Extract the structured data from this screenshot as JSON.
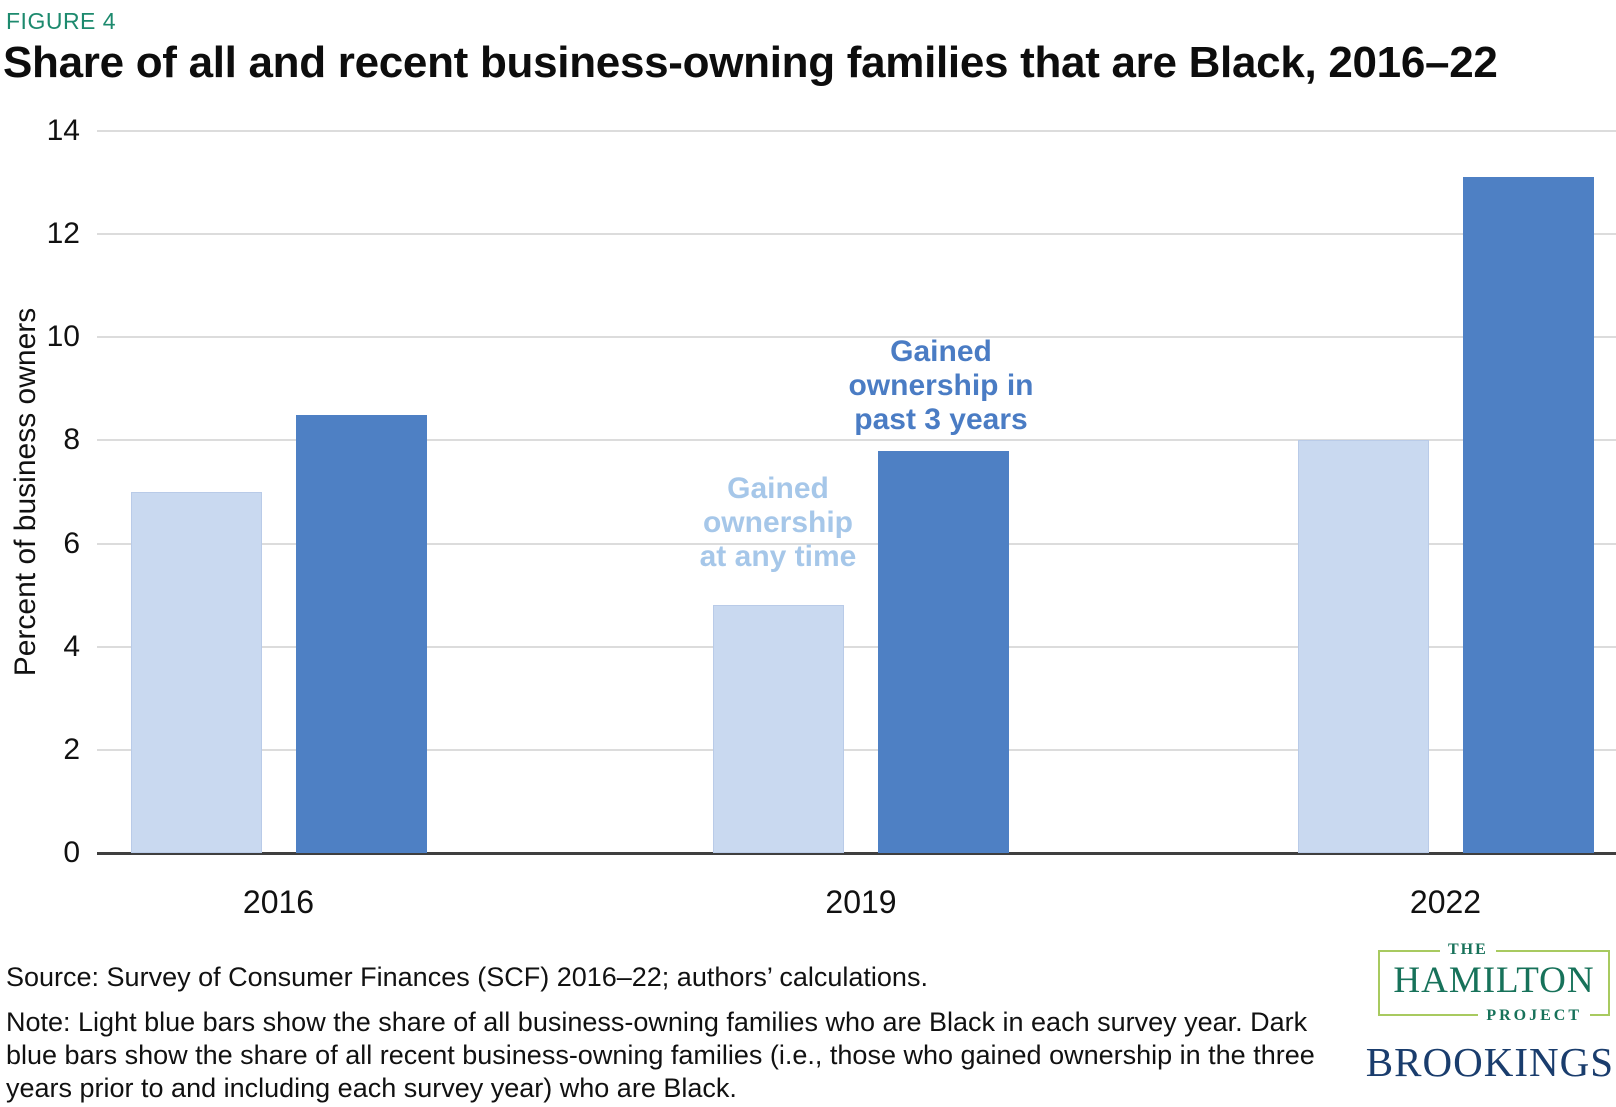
{
  "figure_label": "FIGURE 4",
  "title": "Share of all and recent business-owning families that are Black, 2016–22",
  "chart_data": {
    "type": "bar",
    "categories": [
      "2016",
      "2019",
      "2022"
    ],
    "series": [
      {
        "name": "Gained ownership at any time",
        "color": "#c9d9f0",
        "values": [
          7.0,
          4.8,
          8.0
        ]
      },
      {
        "name": "Gained ownership in past 3 years",
        "color": "#4e80c4",
        "values": [
          8.5,
          7.8,
          13.1
        ]
      }
    ],
    "title": "Share of all and recent business-owning families that are Black, 2016–22",
    "xlabel": "",
    "ylabel": "Percent of business owners",
    "ylim": [
      0,
      14
    ],
    "yticks": [
      0,
      2,
      4,
      6,
      8,
      10,
      12,
      14
    ],
    "grid": true,
    "legend_position": "in-plot annotations",
    "annotations": [
      {
        "text": "Gained\nownership\nat any time",
        "series": "Gained ownership at any time",
        "color": "#a6c7e9"
      },
      {
        "text": "Gained\nownership in\npast 3 years",
        "series": "Gained ownership in past 3 years",
        "color": "#4a7cc4"
      }
    ]
  },
  "footer": {
    "source": "Source: Survey of Consumer Finances (SCF) 2016–22; authors’ calculations.",
    "note": "Note: Light blue bars show the share of all business-owning families who are Black in each survey year. Dark blue bars show the share of all recent business-owning families (i.e., those who gained ownership in the three years prior to and including each survey year) who are Black."
  },
  "logos": {
    "hamilton": {
      "the": "THE",
      "name": "HAMILTON",
      "project": "PROJECT"
    },
    "brookings": "BROOKINGS"
  },
  "colors": {
    "figure_label": "#1d8a6e",
    "light_bar": "#c9d9f0",
    "dark_bar": "#4e80c4",
    "light_annotation": "#a6c7e9",
    "dark_annotation": "#4a7cc4",
    "gridline": "#dcdcdc",
    "axis_line": "#3f3f3f",
    "hamilton_green": "#17725a",
    "hamilton_border": "#a8ca60",
    "brookings_navy": "#1a3d6d"
  }
}
